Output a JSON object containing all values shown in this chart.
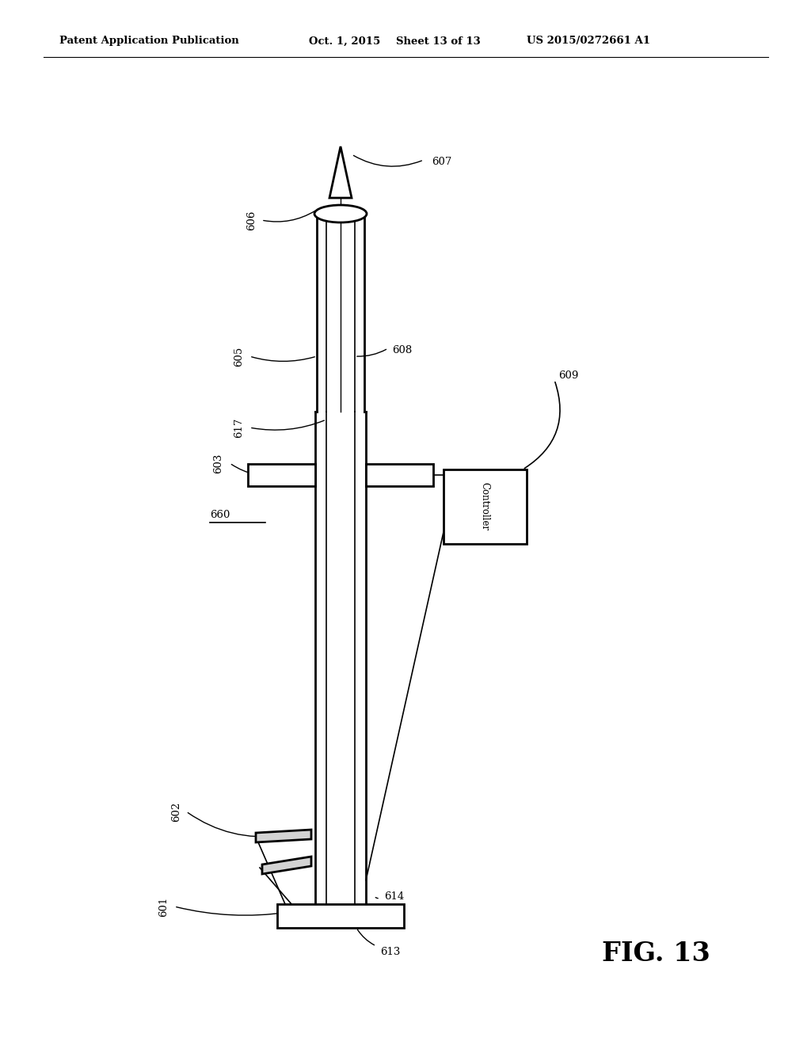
{
  "bg_color": "#ffffff",
  "header_left": "Patent Application Publication",
  "header_mid": "Oct. 1, 2015   Sheet 13 of 13",
  "header_right": "US 2015/0272661 A1",
  "fig_label": "FIG. 13"
}
